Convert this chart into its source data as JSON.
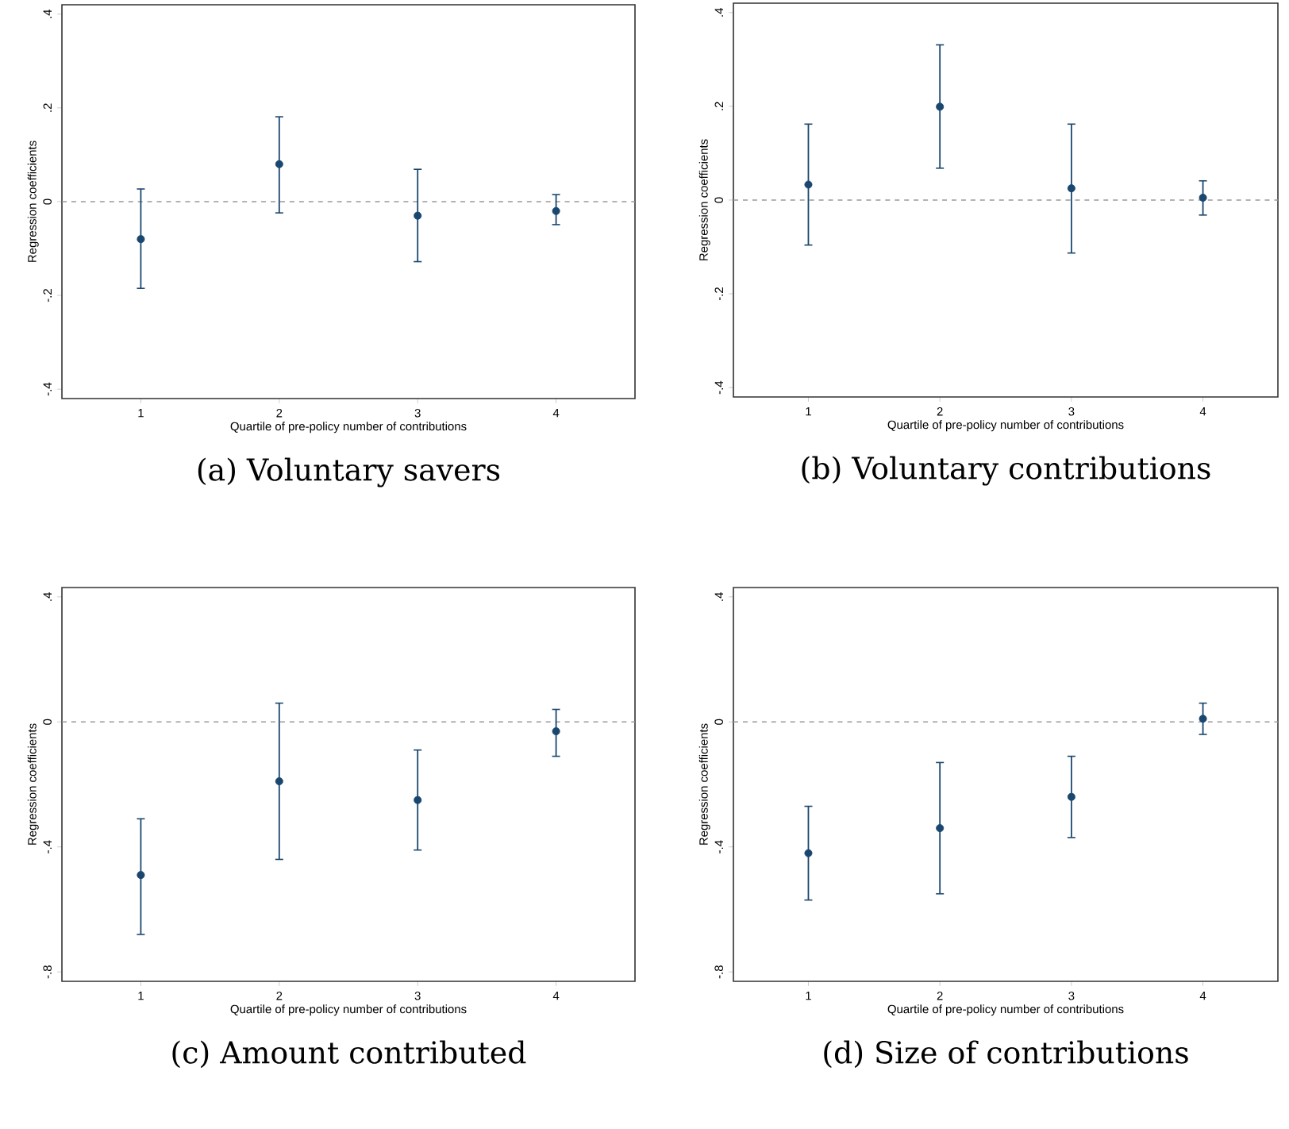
{
  "chart_data": [
    {
      "type": "scatter",
      "title": "(a) Voluntary savers",
      "xlabel": "Quartile of pre-policy number of contributions",
      "ylabel": "Regression coefficients",
      "x": [
        1,
        2,
        3,
        4
      ],
      "marker": "circle",
      "series": [
        {
          "color": "#1a476f",
          "values": [
            -0.08,
            0.08,
            -0.03,
            -0.02
          ],
          "errors": [
            [
              -0.185,
              0.027
            ],
            [
              -0.024,
              0.181
            ],
            [
              -0.128,
              0.069
            ],
            [
              -0.049,
              0.015
            ]
          ]
        }
      ],
      "xlim": [
        0.43,
        4.57
      ],
      "xticks": [
        1,
        2,
        3,
        4
      ],
      "ylim": [
        -0.42,
        0.42
      ],
      "yticks": [
        {
          "value": -0.4,
          "label": "-.4"
        },
        {
          "value": -0.2,
          "label": "-.2"
        },
        {
          "value": 0,
          "label": "0"
        },
        {
          "value": 0.2,
          "label": ".2"
        },
        {
          "value": 0.4,
          "label": ".4"
        }
      ],
      "ref_lines": [
        {
          "axis": "y",
          "value": 0,
          "color": "#999999",
          "line_style": "dashed"
        }
      ]
    },
    {
      "type": "scatter",
      "title": "(b) Voluntary contributions",
      "xlabel": "Quartile of pre-policy number of contributions",
      "ylabel": "Regression coefficients",
      "x": [
        1,
        2,
        3,
        4
      ],
      "marker": "circle",
      "series": [
        {
          "color": "#1a476f",
          "values": [
            0.033,
            0.199,
            0.025,
            0.005
          ],
          "errors": [
            [
              -0.096,
              0.162
            ],
            [
              0.068,
              0.331
            ],
            [
              -0.113,
              0.162
            ],
            [
              -0.032,
              0.041
            ]
          ]
        }
      ],
      "xlim": [
        0.43,
        4.57
      ],
      "xticks": [
        1,
        2,
        3,
        4
      ],
      "ylim": [
        -0.42,
        0.42
      ],
      "yticks": [
        {
          "value": -0.4,
          "label": "-.4"
        },
        {
          "value": -0.2,
          "label": "-.2"
        },
        {
          "value": 0,
          "label": "0"
        },
        {
          "value": 0.2,
          "label": ".2"
        },
        {
          "value": 0.4,
          "label": ".4"
        }
      ],
      "ref_lines": [
        {
          "axis": "y",
          "value": 0,
          "color": "#999999",
          "line_style": "dashed"
        }
      ]
    },
    {
      "type": "scatter",
      "title": "(c) Amount contributed",
      "xlabel": "Quartile of pre-policy number of contributions",
      "ylabel": "Regression coefficients",
      "x": [
        1,
        2,
        3,
        4
      ],
      "marker": "circle",
      "series": [
        {
          "color": "#1a476f",
          "values": [
            -0.49,
            -0.19,
            -0.25,
            -0.03
          ],
          "errors": [
            [
              -0.68,
              -0.31
            ],
            [
              -0.44,
              0.06
            ],
            [
              -0.41,
              -0.09
            ],
            [
              -0.11,
              0.04
            ]
          ]
        }
      ],
      "xlim": [
        0.43,
        4.57
      ],
      "xticks": [
        1,
        2,
        3,
        4
      ],
      "ylim": [
        -0.83,
        0.43
      ],
      "yticks": [
        {
          "value": -0.8,
          "label": "-.8"
        },
        {
          "value": -0.4,
          "label": "-.4"
        },
        {
          "value": 0,
          "label": "0"
        },
        {
          "value": 0.4,
          "label": ".4"
        }
      ],
      "ref_lines": [
        {
          "axis": "y",
          "value": 0,
          "color": "#999999",
          "line_style": "dashed"
        }
      ]
    },
    {
      "type": "scatter",
      "title": "(d) Size of contributions",
      "xlabel": "Quartile of pre-policy number of contributions",
      "ylabel": "Regression coefficients",
      "x": [
        1,
        2,
        3,
        4
      ],
      "marker": "circle",
      "series": [
        {
          "color": "#1a476f",
          "values": [
            -0.42,
            -0.34,
            -0.24,
            0.01
          ],
          "errors": [
            [
              -0.57,
              -0.27
            ],
            [
              -0.55,
              -0.13
            ],
            [
              -0.37,
              -0.11
            ],
            [
              -0.04,
              0.06
            ]
          ]
        }
      ],
      "xlim": [
        0.43,
        4.57
      ],
      "xticks": [
        1,
        2,
        3,
        4
      ],
      "ylim": [
        -0.83,
        0.43
      ],
      "yticks": [
        {
          "value": -0.8,
          "label": "-.8"
        },
        {
          "value": -0.4,
          "label": "-.4"
        },
        {
          "value": 0,
          "label": "0"
        },
        {
          "value": 0.4,
          "label": ".4"
        }
      ],
      "ref_lines": [
        {
          "axis": "y",
          "value": 0,
          "color": "#999999",
          "line_style": "dashed"
        }
      ]
    }
  ]
}
